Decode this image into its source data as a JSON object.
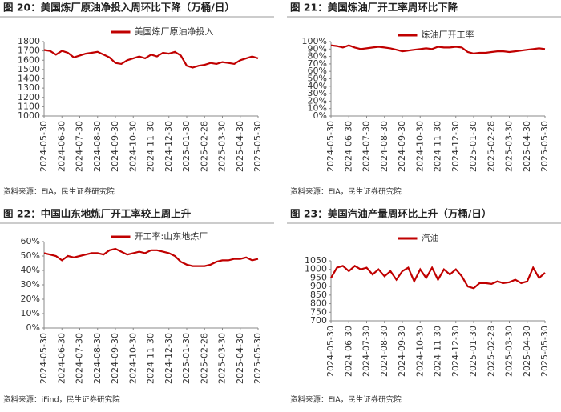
{
  "chart_data": [
    {
      "type": "line",
      "title": "图 20：美国炼厂原油净投入周环比下降（万桶/日）",
      "source": "资料来源：EIA，民生证券研究院",
      "categories": [
        "2024-05-30",
        null,
        null,
        "2024-06-30",
        null,
        null,
        "2024-07-30",
        null,
        null,
        "2024-08-30",
        null,
        null,
        "2024-09-30",
        null,
        null,
        "2024-10-30",
        null,
        null,
        "2024-11-30",
        null,
        null,
        "2024-12-30",
        null,
        null,
        "2025-01-30",
        null,
        null,
        "2025-02-28",
        null,
        null,
        "2025-03-30",
        null,
        null,
        "2025-04-30",
        null,
        null,
        "2025-05-30"
      ],
      "series": [
        {
          "name": "美国炼厂原油净投入",
          "color": "#c00000",
          "values": [
            1710,
            1700,
            1660,
            1700,
            1680,
            1630,
            1650,
            1670,
            1680,
            1690,
            1660,
            1630,
            1570,
            1560,
            1600,
            1620,
            1640,
            1620,
            1660,
            1640,
            1680,
            1670,
            1690,
            1650,
            1540,
            1520,
            1540,
            1550,
            1570,
            1560,
            1580,
            1570,
            1560,
            1600,
            1620,
            1640,
            1620
          ]
        }
      ],
      "ylim": [
        1000,
        1800
      ],
      "yticks": [
        1000,
        1100,
        1200,
        1300,
        1400,
        1500,
        1600,
        1700,
        1800
      ],
      "legend": "top"
    },
    {
      "type": "line",
      "title": "图 21：美国炼油厂开工率周环比下降",
      "source": "资料来源：EIA，民生证券研究院",
      "categories": [
        "2024-05-30",
        null,
        null,
        "2024-06-30",
        null,
        null,
        "2024-07-30",
        null,
        null,
        "2024-08-30",
        null,
        null,
        "2024-09-30",
        null,
        null,
        "2024-10-30",
        null,
        null,
        "2024-11-30",
        null,
        null,
        "2024-12-30",
        null,
        null,
        "2025-01-30",
        null,
        null,
        "2025-02-28",
        null,
        null,
        "2025-03-30",
        null,
        null,
        "2025-04-30",
        null,
        null,
        "2025-05-30"
      ],
      "series": [
        {
          "name": "炼油厂开工率",
          "color": "#c00000",
          "values": [
            95,
            94,
            92,
            95,
            92,
            90,
            91,
            92,
            93,
            92,
            91,
            89,
            87,
            88,
            89,
            90,
            91,
            90,
            93,
            92,
            92,
            93,
            92,
            86,
            84,
            85,
            85,
            86,
            87,
            87,
            86,
            87,
            88,
            89,
            90,
            91,
            90
          ]
        }
      ],
      "ylim": [
        0,
        100
      ],
      "yticks": [
        {
          "value": 0,
          "label": "0%"
        },
        {
          "value": 10,
          "label": "10%"
        },
        {
          "value": 20,
          "label": "20%"
        },
        {
          "value": 30,
          "label": "30%"
        },
        {
          "value": 40,
          "label": "40%"
        },
        {
          "value": 50,
          "label": "50%"
        },
        {
          "value": 60,
          "label": "60%"
        },
        {
          "value": 70,
          "label": "70%"
        },
        {
          "value": 80,
          "label": "80%"
        },
        {
          "value": 90,
          "label": "90%"
        },
        {
          "value": 100,
          "label": "100%"
        }
      ],
      "legend": "top"
    },
    {
      "type": "line",
      "title": "图 22：中国山东地炼厂开工率较上周上升",
      "source": "资料来源：iFind，民生证券研究院",
      "categories": [
        "2024-05-30",
        null,
        null,
        "2024-06-30",
        null,
        null,
        "2024-07-30",
        null,
        null,
        "2024-08-30",
        null,
        null,
        "2024-09-30",
        null,
        null,
        "2024-10-30",
        null,
        null,
        "2024-11-30",
        null,
        null,
        "2024-12-30",
        null,
        null,
        "2025-01-30",
        null,
        null,
        "2025-02-28",
        null,
        null,
        "2025-03-30",
        null,
        null,
        "2025-04-30",
        null,
        null,
        "2025-05-30"
      ],
      "series": [
        {
          "name": "开工率:山东地炼厂",
          "color": "#c00000",
          "values": [
            52,
            51,
            50,
            47,
            50,
            49,
            50,
            51,
            52,
            52,
            51,
            54,
            55,
            53,
            51,
            52,
            53,
            52,
            54,
            54,
            53,
            52,
            50,
            46,
            44,
            43,
            43,
            43,
            44,
            46,
            47,
            47,
            48,
            48,
            49,
            47,
            48
          ]
        }
      ],
      "ylim": [
        0,
        60
      ],
      "yticks": [
        {
          "value": 0,
          "label": "0%"
        },
        {
          "value": 10,
          "label": "10%"
        },
        {
          "value": 20,
          "label": "20%"
        },
        {
          "value": 30,
          "label": "30%"
        },
        {
          "value": 40,
          "label": "40%"
        },
        {
          "value": 50,
          "label": "50%"
        },
        {
          "value": 60,
          "label": "60%"
        }
      ],
      "legend": "top"
    },
    {
      "type": "line",
      "title": "图 23：美国汽油产量周环比上升（万桶/日）",
      "source": "资料来源：EIA，民生证券研究院",
      "categories": [
        "2024-05-30",
        null,
        null,
        "2024-06-30",
        null,
        null,
        "2024-07-30",
        null,
        null,
        "2024-08-30",
        null,
        null,
        "2024-09-30",
        null,
        null,
        "2024-10-30",
        null,
        null,
        "2024-11-30",
        null,
        null,
        "2024-12-30",
        null,
        null,
        "2025-01-30",
        null,
        null,
        "2025-02-28",
        null,
        null,
        "2025-03-30",
        null,
        null,
        "2025-04-30",
        null,
        null,
        "2025-05-30"
      ],
      "series": [
        {
          "name": "汽油",
          "color": "#c00000",
          "values": [
            950,
            1010,
            1020,
            990,
            1020,
            1000,
            1010,
            970,
            1000,
            960,
            990,
            940,
            990,
            1010,
            930,
            1000,
            950,
            1010,
            940,
            1000,
            970,
            1000,
            960,
            900,
            890,
            920,
            920,
            915,
            930,
            920,
            925,
            940,
            920,
            930,
            1010,
            950,
            980
          ]
        }
      ],
      "ylim": [
        700,
        1050
      ],
      "yticks": [
        700,
        750,
        800,
        850,
        900,
        950,
        1000,
        1050
      ],
      "legend": "top"
    }
  ]
}
